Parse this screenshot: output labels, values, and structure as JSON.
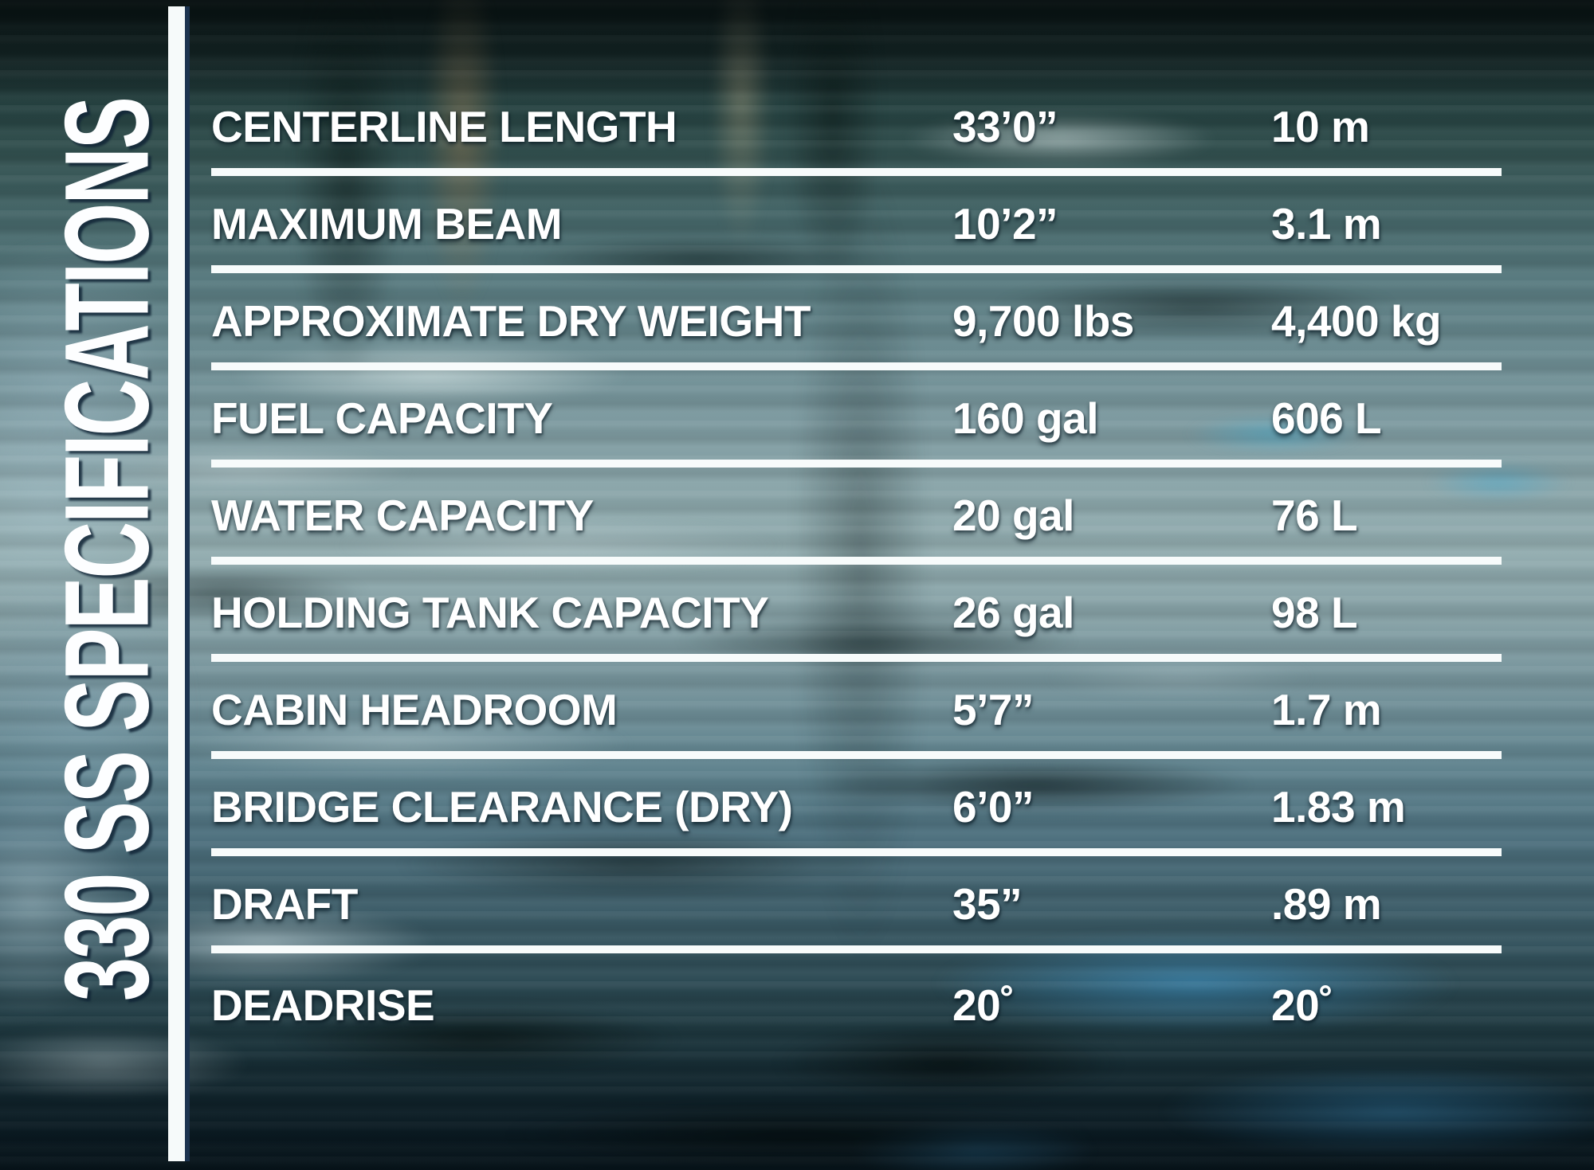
{
  "page": {
    "title": "330 SS SPECIFICATIONS"
  },
  "table": {
    "rows": [
      {
        "label": "CENTERLINE LENGTH",
        "imperial": "33’0”",
        "metric": "10 m"
      },
      {
        "label": "MAXIMUM BEAM",
        "imperial": "10’2”",
        "metric": "3.1 m"
      },
      {
        "label": "APPROXIMATE DRY WEIGHT",
        "imperial": "9,700 lbs",
        "metric": "4,400 kg"
      },
      {
        "label": "FUEL CAPACITY",
        "imperial": "160 gal",
        "metric": "606 L"
      },
      {
        "label": "WATER CAPACITY",
        "imperial": "20 gal",
        "metric": "76 L"
      },
      {
        "label": "HOLDING TANK CAPACITY",
        "imperial": "26 gal",
        "metric": "98 L"
      },
      {
        "label": "CABIN HEADROOM",
        "imperial": "5’7”",
        "metric": "1.7 m"
      },
      {
        "label": "BRIDGE CLEARANCE (DRY)",
        "imperial": "6’0”",
        "metric": "1.83 m"
      },
      {
        "label": "DRAFT",
        "imperial": "35”",
        "metric": ".89 m"
      },
      {
        "label": "DEADRISE",
        "imperial": "20˚",
        "metric": "20˚"
      }
    ]
  },
  "colors": {
    "text": "#ffffff",
    "rule": "#f7fbfb",
    "divider_edge_navy": "#1d3450",
    "water_dark_teal": "#0e2228",
    "water_light_streak": "#cfdfe0",
    "water_cyan_patch": "#3e94c6"
  }
}
